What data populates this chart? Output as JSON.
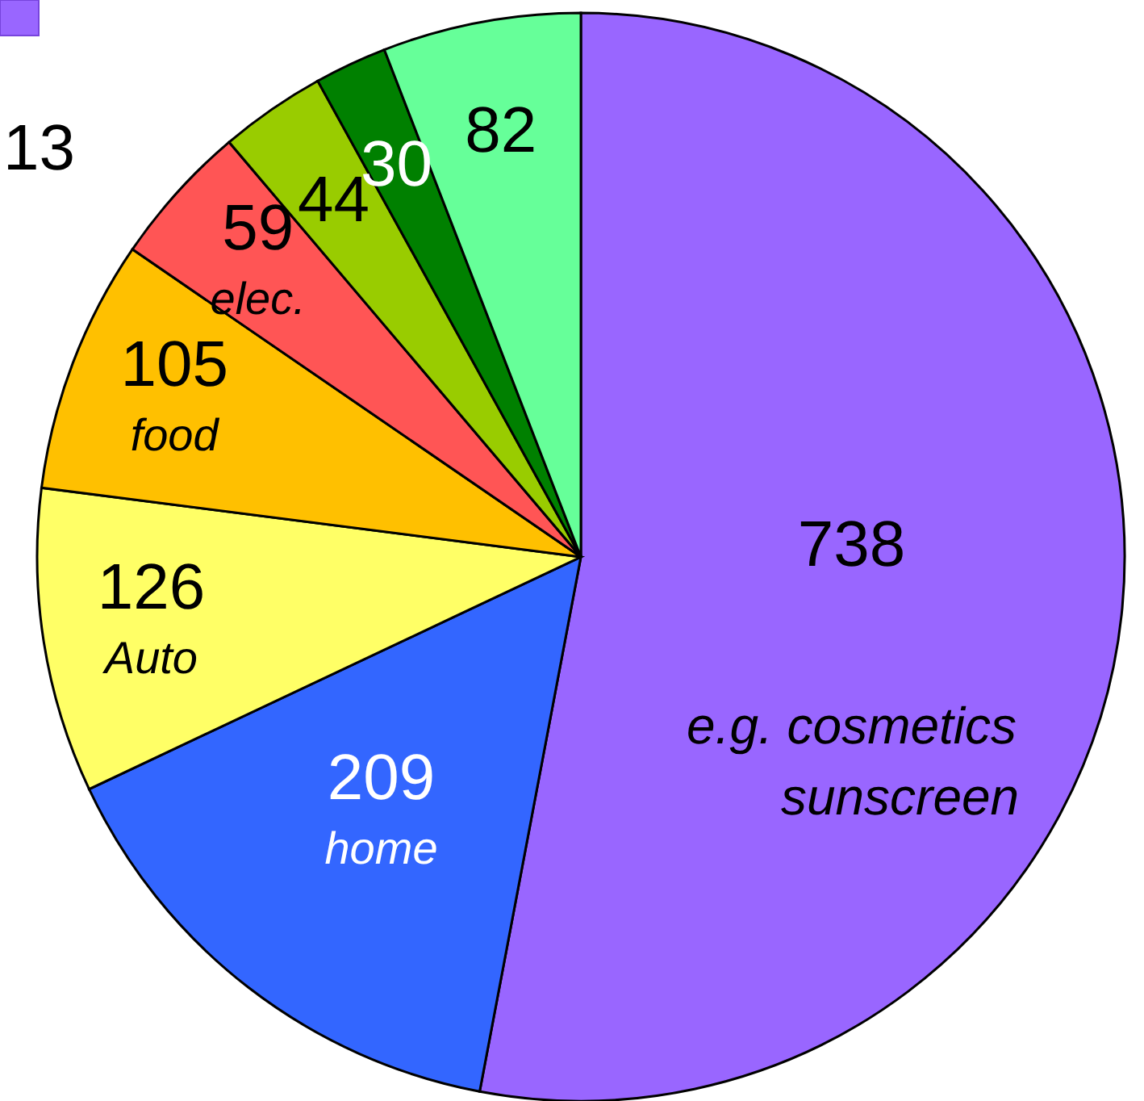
{
  "chart_data": {
    "type": "pie",
    "categories": [
      "e.g. cosmetics\nsunscreen",
      "home",
      "Auto",
      "food",
      "elec.",
      null,
      null,
      null
    ],
    "values": [
      738,
      209,
      126,
      105,
      59,
      44,
      30,
      82
    ],
    "colors": [
      "#9966ff",
      "#3366ff",
      "#ffff66",
      "#ffc000",
      "#ff5555",
      "#99cc00",
      "#008000",
      "#66ff99"
    ],
    "data_labels": true,
    "annotations": [
      "13"
    ]
  }
}
